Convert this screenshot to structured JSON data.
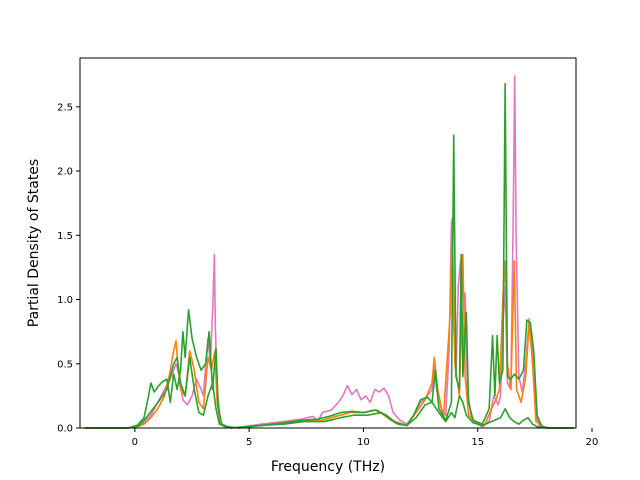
{
  "chart_data": {
    "type": "line",
    "title": "",
    "xlabel": "Frequency (THz)",
    "ylabel": "Partial Density of States",
    "xlim": [
      -2.4,
      19.3
    ],
    "ylim": [
      0,
      2.88
    ],
    "xticks": [
      0,
      5,
      10,
      15,
      20
    ],
    "yticks": [
      0.0,
      0.5,
      1.0,
      1.5,
      2.0,
      2.5
    ],
    "grid": false,
    "legend": "none",
    "series": [
      {
        "color": "#e377c2",
        "points": [
          [
            -2.2,
            0
          ],
          [
            -0.3,
            0
          ],
          [
            0.1,
            0.01
          ],
          [
            0.4,
            0.04
          ],
          [
            0.7,
            0.1
          ],
          [
            1.0,
            0.2
          ],
          [
            1.3,
            0.3
          ],
          [
            1.6,
            0.4
          ],
          [
            1.8,
            0.5
          ],
          [
            1.95,
            0.4
          ],
          [
            2.1,
            0.22
          ],
          [
            2.3,
            0.18
          ],
          [
            2.5,
            0.25
          ],
          [
            2.7,
            0.38
          ],
          [
            2.9,
            0.3
          ],
          [
            3.0,
            0.25
          ],
          [
            3.1,
            0.5
          ],
          [
            3.2,
            0.7
          ],
          [
            3.3,
            0.5
          ],
          [
            3.4,
            0.9
          ],
          [
            3.48,
            1.35
          ],
          [
            3.52,
            0.8
          ],
          [
            3.6,
            0.3
          ],
          [
            3.75,
            0.05
          ],
          [
            3.9,
            0.01
          ],
          [
            4.2,
            0
          ],
          [
            4.8,
            0.01
          ],
          [
            5.5,
            0.03
          ],
          [
            6.5,
            0.05
          ],
          [
            7.3,
            0.07
          ],
          [
            7.8,
            0.09
          ],
          [
            8.0,
            0.05
          ],
          [
            8.2,
            0.12
          ],
          [
            8.6,
            0.14
          ],
          [
            8.9,
            0.2
          ],
          [
            9.1,
            0.25
          ],
          [
            9.3,
            0.33
          ],
          [
            9.5,
            0.26
          ],
          [
            9.7,
            0.3
          ],
          [
            9.9,
            0.22
          ],
          [
            10.1,
            0.25
          ],
          [
            10.3,
            0.2
          ],
          [
            10.5,
            0.3
          ],
          [
            10.7,
            0.28
          ],
          [
            10.9,
            0.31
          ],
          [
            11.1,
            0.25
          ],
          [
            11.3,
            0.12
          ],
          [
            11.6,
            0.06
          ],
          [
            11.9,
            0.03
          ],
          [
            12.2,
            0.1
          ],
          [
            12.5,
            0.2
          ],
          [
            12.8,
            0.25
          ],
          [
            13.0,
            0.3
          ],
          [
            13.1,
            0.5
          ],
          [
            13.2,
            0.3
          ],
          [
            13.4,
            0.15
          ],
          [
            13.6,
            0.1
          ],
          [
            13.75,
            0.6
          ],
          [
            13.85,
            1.6
          ],
          [
            13.95,
            0.8
          ],
          [
            14.05,
            0.4
          ],
          [
            14.15,
            1.1
          ],
          [
            14.25,
            1.3
          ],
          [
            14.35,
            0.6
          ],
          [
            14.45,
            1.05
          ],
          [
            14.55,
            0.3
          ],
          [
            14.7,
            0.1
          ],
          [
            14.9,
            0.04
          ],
          [
            15.2,
            0.01
          ],
          [
            15.5,
            0.05
          ],
          [
            15.7,
            0.25
          ],
          [
            15.9,
            0.18
          ],
          [
            16.0,
            0.25
          ],
          [
            16.1,
            0.8
          ],
          [
            16.2,
            1.1
          ],
          [
            16.3,
            0.35
          ],
          [
            16.45,
            0.3
          ],
          [
            16.55,
            1.6
          ],
          [
            16.62,
            2.74
          ],
          [
            16.68,
            1.5
          ],
          [
            16.8,
            0.4
          ],
          [
            16.95,
            0.28
          ],
          [
            17.1,
            0.5
          ],
          [
            17.25,
            0.85
          ],
          [
            17.4,
            0.6
          ],
          [
            17.55,
            0.1
          ],
          [
            17.7,
            0.01
          ],
          [
            18.0,
            0
          ],
          [
            19.2,
            0
          ]
        ]
      },
      {
        "color": "#ff7f0e",
        "points": [
          [
            -2.2,
            0
          ],
          [
            -0.3,
            0
          ],
          [
            0.1,
            0.01
          ],
          [
            0.4,
            0.03
          ],
          [
            0.7,
            0.08
          ],
          [
            1.0,
            0.15
          ],
          [
            1.3,
            0.25
          ],
          [
            1.5,
            0.4
          ],
          [
            1.7,
            0.6
          ],
          [
            1.8,
            0.68
          ],
          [
            1.9,
            0.45
          ],
          [
            2.0,
            0.3
          ],
          [
            2.2,
            0.25
          ],
          [
            2.4,
            0.6
          ],
          [
            2.6,
            0.45
          ],
          [
            2.8,
            0.2
          ],
          [
            3.0,
            0.15
          ],
          [
            3.2,
            0.55
          ],
          [
            3.35,
            0.45
          ],
          [
            3.5,
            0.6
          ],
          [
            3.6,
            0.2
          ],
          [
            3.75,
            0.03
          ],
          [
            4.0,
            0.01
          ],
          [
            4.5,
            0
          ],
          [
            5.5,
            0.02
          ],
          [
            6.5,
            0.04
          ],
          [
            7.4,
            0.06
          ],
          [
            8.2,
            0.06
          ],
          [
            8.8,
            0.09
          ],
          [
            9.4,
            0.12
          ],
          [
            10.0,
            0.12
          ],
          [
            10.6,
            0.14
          ],
          [
            11.2,
            0.06
          ],
          [
            11.9,
            0.02
          ],
          [
            12.3,
            0.12
          ],
          [
            12.7,
            0.22
          ],
          [
            13.0,
            0.35
          ],
          [
            13.1,
            0.55
          ],
          [
            13.25,
            0.3
          ],
          [
            13.5,
            0.08
          ],
          [
            13.8,
            0.9
          ],
          [
            13.88,
            1.63
          ],
          [
            14.0,
            0.5
          ],
          [
            14.2,
            0.25
          ],
          [
            14.35,
            1.35
          ],
          [
            14.45,
            0.4
          ],
          [
            14.6,
            0.1
          ],
          [
            14.9,
            0.04
          ],
          [
            15.3,
            0.02
          ],
          [
            15.6,
            0.15
          ],
          [
            15.8,
            0.22
          ],
          [
            15.95,
            0.3
          ],
          [
            16.1,
            1.0
          ],
          [
            16.2,
            1.3
          ],
          [
            16.3,
            0.5
          ],
          [
            16.45,
            0.3
          ],
          [
            16.6,
            1.3
          ],
          [
            16.7,
            0.3
          ],
          [
            16.9,
            0.2
          ],
          [
            17.1,
            0.4
          ],
          [
            17.25,
            0.82
          ],
          [
            17.4,
            0.5
          ],
          [
            17.55,
            0.05
          ],
          [
            18.0,
            0
          ],
          [
            19.2,
            0
          ]
        ]
      },
      {
        "color": "#2ca02c",
        "points": [
          [
            -2.2,
            0
          ],
          [
            -0.3,
            0
          ],
          [
            0.1,
            0.02
          ],
          [
            0.4,
            0.08
          ],
          [
            0.6,
            0.25
          ],
          [
            0.7,
            0.35
          ],
          [
            0.85,
            0.28
          ],
          [
            1.0,
            0.32
          ],
          [
            1.2,
            0.36
          ],
          [
            1.4,
            0.38
          ],
          [
            1.55,
            0.2
          ],
          [
            1.7,
            0.42
          ],
          [
            1.85,
            0.3
          ],
          [
            2.0,
            0.45
          ],
          [
            2.1,
            0.75
          ],
          [
            2.2,
            0.55
          ],
          [
            2.35,
            0.92
          ],
          [
            2.5,
            0.7
          ],
          [
            2.7,
            0.55
          ],
          [
            2.9,
            0.45
          ],
          [
            3.1,
            0.5
          ],
          [
            3.25,
            0.75
          ],
          [
            3.4,
            0.3
          ],
          [
            3.55,
            0.62
          ],
          [
            3.65,
            0.15
          ],
          [
            3.8,
            0.03
          ],
          [
            4.2,
            0
          ],
          [
            4.8,
            0.01
          ],
          [
            5.6,
            0.02
          ],
          [
            6.5,
            0.04
          ],
          [
            7.3,
            0.06
          ],
          [
            8.0,
            0.07
          ],
          [
            8.5,
            0.09
          ],
          [
            9.0,
            0.12
          ],
          [
            9.5,
            0.13
          ],
          [
            10.0,
            0.12
          ],
          [
            10.5,
            0.14
          ],
          [
            11.0,
            0.1
          ],
          [
            11.5,
            0.03
          ],
          [
            11.9,
            0.02
          ],
          [
            12.2,
            0.1
          ],
          [
            12.5,
            0.22
          ],
          [
            12.8,
            0.24
          ],
          [
            13.0,
            0.2
          ],
          [
            13.15,
            0.45
          ],
          [
            13.3,
            0.15
          ],
          [
            13.6,
            0.06
          ],
          [
            13.85,
            0.2
          ],
          [
            13.95,
            2.28
          ],
          [
            14.05,
            0.4
          ],
          [
            14.2,
            0.3
          ],
          [
            14.28,
            1.35
          ],
          [
            14.35,
            0.4
          ],
          [
            14.5,
            0.9
          ],
          [
            14.6,
            0.2
          ],
          [
            14.8,
            0.06
          ],
          [
            15.2,
            0.03
          ],
          [
            15.5,
            0.15
          ],
          [
            15.65,
            0.72
          ],
          [
            15.75,
            0.25
          ],
          [
            15.85,
            0.72
          ],
          [
            15.95,
            0.35
          ],
          [
            16.1,
            0.45
          ],
          [
            16.2,
            2.68
          ],
          [
            16.3,
            0.4
          ],
          [
            16.45,
            0.38
          ],
          [
            16.6,
            0.42
          ],
          [
            16.8,
            0.38
          ],
          [
            17.0,
            0.45
          ],
          [
            17.15,
            0.84
          ],
          [
            17.3,
            0.82
          ],
          [
            17.45,
            0.6
          ],
          [
            17.6,
            0.1
          ],
          [
            17.8,
            0.01
          ],
          [
            18.2,
            0
          ],
          [
            19.2,
            0
          ]
        ]
      },
      {
        "color": "#2ca02c",
        "points": [
          [
            -2.2,
            0
          ],
          [
            -0.3,
            0
          ],
          [
            0.2,
            0.02
          ],
          [
            0.5,
            0.08
          ],
          [
            0.8,
            0.15
          ],
          [
            1.1,
            0.22
          ],
          [
            1.4,
            0.3
          ],
          [
            1.7,
            0.5
          ],
          [
            1.85,
            0.55
          ],
          [
            2.0,
            0.35
          ],
          [
            2.2,
            0.25
          ],
          [
            2.4,
            0.55
          ],
          [
            2.6,
            0.3
          ],
          [
            2.8,
            0.12
          ],
          [
            3.0,
            0.1
          ],
          [
            3.2,
            0.25
          ],
          [
            3.4,
            0.35
          ],
          [
            3.55,
            0.15
          ],
          [
            3.7,
            0.03
          ],
          [
            4.0,
            0.01
          ],
          [
            4.6,
            0
          ],
          [
            5.5,
            0.02
          ],
          [
            6.5,
            0.03
          ],
          [
            7.4,
            0.05
          ],
          [
            8.3,
            0.05
          ],
          [
            9.0,
            0.08
          ],
          [
            9.6,
            0.1
          ],
          [
            10.2,
            0.1
          ],
          [
            10.8,
            0.12
          ],
          [
            11.4,
            0.04
          ],
          [
            11.9,
            0.02
          ],
          [
            12.3,
            0.08
          ],
          [
            12.7,
            0.18
          ],
          [
            13.0,
            0.2
          ],
          [
            13.3,
            0.12
          ],
          [
            13.6,
            0.05
          ],
          [
            13.85,
            0.12
          ],
          [
            14.0,
            0.08
          ],
          [
            14.2,
            0.25
          ],
          [
            14.35,
            0.2
          ],
          [
            14.5,
            0.1
          ],
          [
            14.8,
            0.04
          ],
          [
            15.2,
            0.02
          ],
          [
            15.6,
            0.05
          ],
          [
            16.0,
            0.08
          ],
          [
            16.2,
            0.15
          ],
          [
            16.4,
            0.08
          ],
          [
            16.6,
            0.05
          ],
          [
            16.8,
            0.03
          ],
          [
            17.0,
            0.06
          ],
          [
            17.2,
            0.08
          ],
          [
            17.4,
            0.03
          ],
          [
            17.6,
            0.01
          ],
          [
            18.0,
            0
          ],
          [
            19.2,
            0
          ]
        ]
      }
    ]
  }
}
